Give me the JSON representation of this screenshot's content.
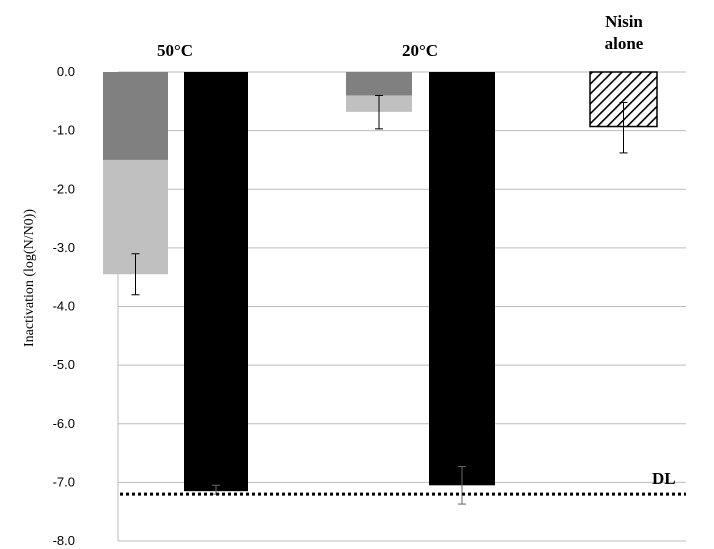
{
  "chart_data": {
    "type": "bar",
    "ylabel": "Inactivation  (log(N/N0))",
    "ylim": [
      -8.0,
      0.0
    ],
    "yticks": [
      "0.0",
      "-1.0",
      "-2.0",
      "-3.0",
      "-4.0",
      "-5.0",
      "-6.0",
      "-7.0",
      "-8.0"
    ],
    "grid": true,
    "groups": [
      "50°C",
      "20°C",
      "Nisin\nalone"
    ],
    "colors": {
      "dark_gray": "#808080",
      "light_gray": "#c0c0c0",
      "black": "#000000",
      "hatch": "#000000"
    },
    "bars": [
      {
        "group": "50°C",
        "style": "stacked",
        "segments": [
          {
            "from": 0.0,
            "to": -1.5,
            "color": "dark_gray"
          },
          {
            "from": -1.5,
            "to": -3.45,
            "color": "light_gray"
          }
        ],
        "error": {
          "center": -3.45,
          "low": -3.8,
          "high": -3.1
        }
      },
      {
        "group": "50°C",
        "style": "solid",
        "value": -7.15,
        "color": "black",
        "error": {
          "center": -7.15,
          "low": -7.2,
          "high": -7.05
        }
      },
      {
        "group": "20°C",
        "style": "stacked",
        "segments": [
          {
            "from": 0.0,
            "to": -0.4,
            "color": "dark_gray"
          },
          {
            "from": -0.4,
            "to": -0.68,
            "color": "light_gray"
          }
        ],
        "error": {
          "center": -0.68,
          "low": -0.97,
          "high": -0.4
        }
      },
      {
        "group": "20°C",
        "style": "solid",
        "value": -7.05,
        "color": "black",
        "error": {
          "center": -7.05,
          "low": -7.37,
          "high": -6.73
        }
      },
      {
        "group": "Nisin\nalone",
        "style": "hatched",
        "value": -0.93,
        "color": "hatch",
        "error": {
          "center": -0.93,
          "low": -1.38,
          "high": -0.52
        }
      }
    ],
    "reference_line": {
      "label": "DL",
      "value": -7.2,
      "style": "dotted"
    }
  }
}
